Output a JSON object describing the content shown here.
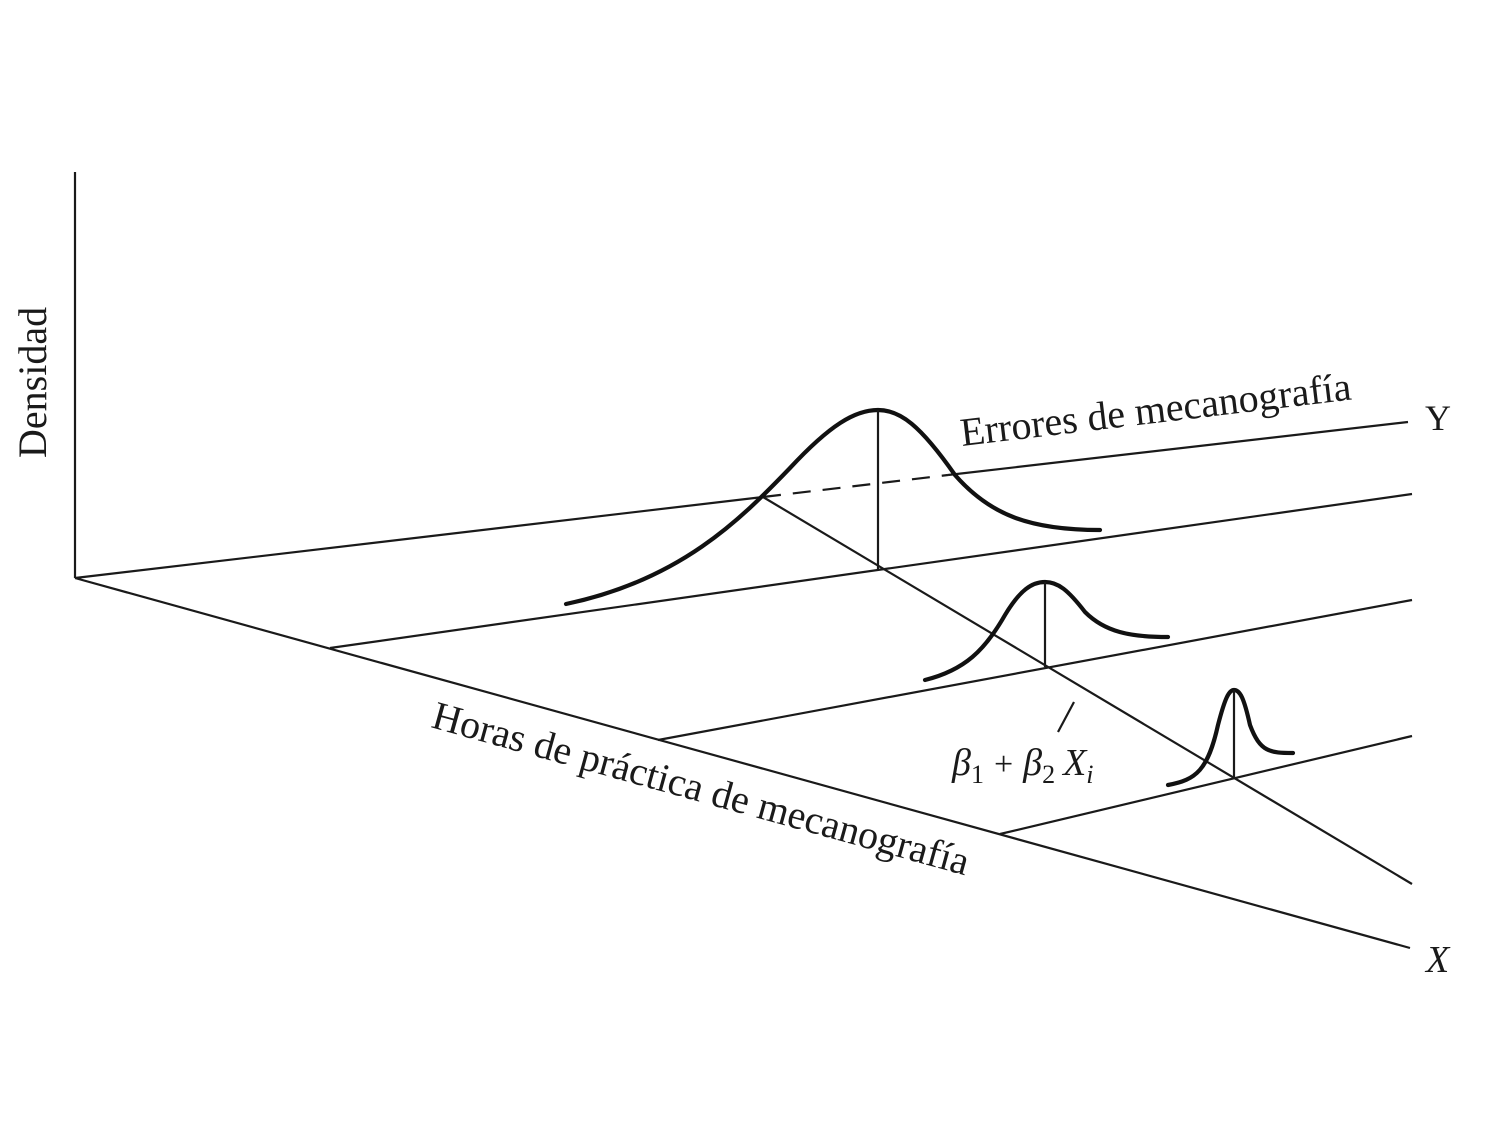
{
  "labels": {
    "y_axis_vertical": "Densidad",
    "y_axis_depth": "Errores de mecanografía",
    "y_letter": "Y",
    "x_axis": "Horas de práctica de mecanografía",
    "x_letter": "X",
    "regression_line": {
      "beta1": "β",
      "beta1_sub": "1",
      "plus": "+",
      "beta2": "β",
      "beta2_sub": "2",
      "x": "X",
      "x_sub": "i"
    }
  }
}
